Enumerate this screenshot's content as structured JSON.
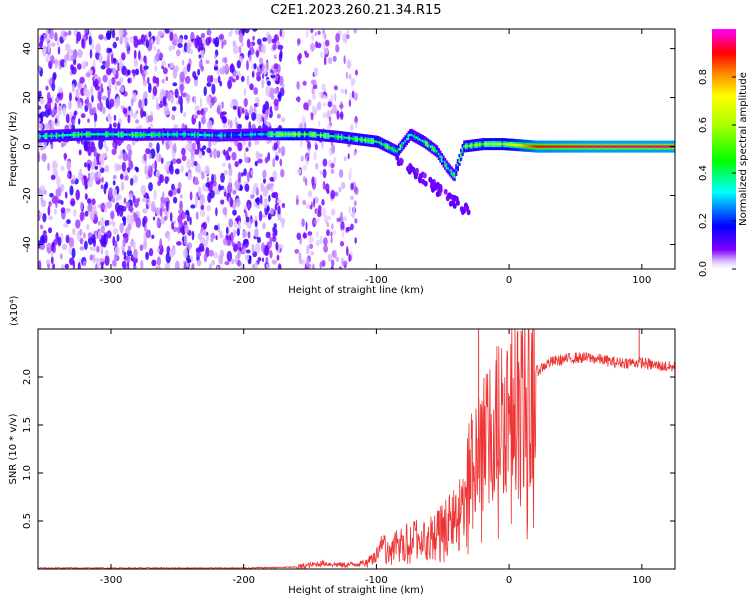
{
  "title": "C2E1.2023.260.21.34.R15",
  "chart_data": [
    {
      "type": "heatmap",
      "xlabel": "Height of straight line (km)",
      "ylabel": "Frequency (Hz)",
      "xlim": [
        -355,
        125
      ],
      "ylim": [
        -50,
        48
      ],
      "xticks": [
        -300,
        -200,
        -100,
        0,
        100
      ],
      "yticks": [
        -40,
        -20,
        0,
        20,
        40
      ],
      "xtick_labels": [
        "-300",
        "-200",
        "-100",
        "0",
        "100"
      ],
      "ytick_labels": [
        "-40",
        "-20",
        "0",
        "20",
        "40"
      ],
      "colorbar": {
        "label": "Normalized spectral amplitude",
        "range": [
          0,
          1
        ],
        "ticks": [
          0.0,
          0.2,
          0.4,
          0.6,
          0.8
        ],
        "tick_labels": [
          "0.0",
          "0.2",
          "0.4",
          "0.6",
          "0.8"
        ],
        "colormap": [
          "#ffffff",
          "#8000ff",
          "#0000ff",
          "#00ffff",
          "#00ff00",
          "#ffff00",
          "#ff0000",
          "#ff00ff"
        ]
      },
      "ridge": [
        {
          "x": -340,
          "f": 4.5,
          "a": 0.4
        },
        {
          "x": -320,
          "f": 5,
          "a": 0.45
        },
        {
          "x": -300,
          "f": 5,
          "a": 0.4
        },
        {
          "x": -280,
          "f": 4.8,
          "a": 0.42
        },
        {
          "x": -245,
          "f": 5,
          "a": 0.35
        },
        {
          "x": -220,
          "f": 4.5,
          "a": 0.3
        },
        {
          "x": -190,
          "f": 5,
          "a": 0.3
        },
        {
          "x": -165,
          "f": 5,
          "a": 0.62
        },
        {
          "x": -150,
          "f": 5,
          "a": 0.5
        },
        {
          "x": -130,
          "f": 4,
          "a": 0.45
        },
        {
          "x": -115,
          "f": 3,
          "a": 0.5
        },
        {
          "x": -100,
          "f": 2,
          "a": 0.5
        },
        {
          "x": -85,
          "f": -2,
          "a": 0.45
        },
        {
          "x": -75,
          "f": 5,
          "a": 0.4
        },
        {
          "x": -65,
          "f": 2,
          "a": 0.45
        },
        {
          "x": -55,
          "f": -2,
          "a": 0.4
        },
        {
          "x": -48,
          "f": -8,
          "a": 0.35
        },
        {
          "x": -42,
          "f": -12,
          "a": 0.35
        },
        {
          "x": -35,
          "f": 0,
          "a": 0.5
        },
        {
          "x": -20,
          "f": 1,
          "a": 0.55
        },
        {
          "x": -5,
          "f": 1,
          "a": 0.6
        },
        {
          "x": 20,
          "f": 0,
          "a": 0.9
        },
        {
          "x": 60,
          "f": 0,
          "a": 0.95
        },
        {
          "x": 100,
          "f": 0,
          "a": 0.95
        },
        {
          "x": 125,
          "f": 0,
          "a": 0.95
        }
      ]
    },
    {
      "type": "line",
      "xlabel": "Height of straight line (km)",
      "ylabel": "SNR (10 * v/v)",
      "y_multiplier": "(x10⁴)",
      "xlim": [
        -355,
        125
      ],
      "ylim": [
        0,
        2.5
      ],
      "xticks": [
        -300,
        -200,
        -100,
        0,
        100
      ],
      "yticks": [
        0.5,
        1.0,
        1.5,
        2.0
      ],
      "xtick_labels": [
        "-300",
        "-200",
        "-100",
        "0",
        "100"
      ],
      "ytick_labels": [
        "0.5",
        "1.0",
        "1.5",
        "2.0"
      ],
      "color": "#ee3333",
      "series": [
        {
          "x": [
            -355,
            -300,
            -250,
            -200,
            -160,
            -150,
            -140,
            -125,
            -110,
            -100,
            -95,
            -90,
            -80,
            -70,
            -60,
            -50,
            -40,
            -35,
            -30,
            -25,
            -22,
            -20,
            -15,
            -10,
            -5,
            0,
            5,
            10,
            15,
            20,
            30,
            40,
            50,
            60,
            70,
            80,
            90,
            100,
            110,
            125
          ],
          "y": [
            0.01,
            0.01,
            0.01,
            0.01,
            0.02,
            0.04,
            0.06,
            0.04,
            0.06,
            0.15,
            0.25,
            0.22,
            0.3,
            0.35,
            0.35,
            0.45,
            0.55,
            0.65,
            1.0,
            1.2,
            1.35,
            1.3,
            1.4,
            1.55,
            1.65,
            1.7,
            1.8,
            1.85,
            1.9,
            2.05,
            2.15,
            2.18,
            2.2,
            2.2,
            2.18,
            2.15,
            2.15,
            2.15,
            2.12,
            2.1
          ]
        }
      ]
    }
  ]
}
